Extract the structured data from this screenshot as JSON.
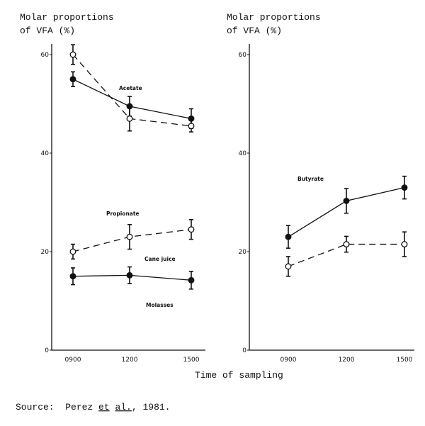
{
  "chart_data": [
    {
      "type": "line",
      "ylabel": "Molar proportions\nof VFA (%)",
      "ylabel_lines": [
        "Molar proportions",
        "of VFA (%)"
      ],
      "categories": [
        "0900",
        "1200",
        "1500"
      ],
      "ylim": [
        0,
        60
      ],
      "yticks": [
        "0",
        "20",
        "40",
        "60"
      ],
      "grid": false,
      "annotations": [
        "Acetate",
        "Propionate",
        "Cane juice",
        "Molasses"
      ],
      "series": [
        {
          "group": "Acetate",
          "diet": "Molasses",
          "marker": "filled",
          "line": "solid",
          "values": [
            55,
            49.5,
            47
          ],
          "error": [
            1.5,
            2,
            2
          ]
        },
        {
          "group": "Acetate",
          "diet": "Cane juice",
          "marker": "open",
          "line": "dashed",
          "values": [
            60,
            47,
            45.5
          ],
          "error": [
            2,
            2.5,
            1.2
          ]
        },
        {
          "group": "Propionate",
          "diet": "Cane juice",
          "marker": "open",
          "line": "dashed",
          "values": [
            20,
            23,
            24.5
          ],
          "error": [
            1.5,
            2.5,
            2
          ]
        },
        {
          "group": "Propionate",
          "diet": "Molasses",
          "marker": "filled",
          "line": "solid",
          "values": [
            15,
            15.2,
            14.2
          ],
          "error": [
            1.7,
            1.7,
            1.8
          ]
        }
      ]
    },
    {
      "type": "line",
      "ylabel": "Molar proportions\nof VFA (%)",
      "ylabel_lines": [
        "Molar proportions",
        "of VFA (%)"
      ],
      "categories": [
        "0900",
        "1200",
        "1500"
      ],
      "ylim": [
        0,
        60
      ],
      "yticks": [
        "0",
        "20",
        "40",
        "60"
      ],
      "grid": false,
      "annotations": [
        "Butyrate"
      ],
      "series": [
        {
          "group": "Butyrate",
          "diet": "Molasses",
          "marker": "filled",
          "line": "solid",
          "values": [
            23,
            30.3,
            33
          ],
          "error": [
            2.3,
            2.5,
            2.3
          ]
        },
        {
          "group": "Butyrate",
          "diet": "Cane juice",
          "marker": "open",
          "line": "dashed",
          "values": [
            17,
            21.5,
            21.5
          ],
          "error": [
            2,
            1.6,
            2.5
          ]
        }
      ]
    }
  ],
  "xlabel": "Time of sampling",
  "source": {
    "prefix": "Source:  Perez ",
    "et": "et",
    "space": " ",
    "al": "al.",
    "suffix": ", 1981."
  }
}
